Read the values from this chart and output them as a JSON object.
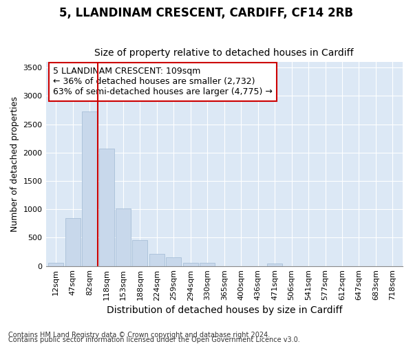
{
  "title": "5, LLANDINAM CRESCENT, CARDIFF, CF14 2RB",
  "subtitle": "Size of property relative to detached houses in Cardiff",
  "xlabel": "Distribution of detached houses by size in Cardiff",
  "ylabel": "Number of detached properties",
  "footnote1": "Contains HM Land Registry data © Crown copyright and database right 2024.",
  "footnote2": "Contains public sector information licensed under the Open Government Licence v3.0.",
  "annotation_line1": "5 LLANDINAM CRESCENT: 109sqm",
  "annotation_line2": "← 36% of detached houses are smaller (2,732)",
  "annotation_line3": "63% of semi-detached houses are larger (4,775) →",
  "bar_color": "#c8d8eb",
  "bar_edge_color": "#a8bfd8",
  "vline_color": "#cc0000",
  "categories": [
    "12sqm",
    "47sqm",
    "82sqm",
    "118sqm",
    "153sqm",
    "188sqm",
    "224sqm",
    "259sqm",
    "294sqm",
    "330sqm",
    "365sqm",
    "400sqm",
    "436sqm",
    "471sqm",
    "506sqm",
    "541sqm",
    "577sqm",
    "612sqm",
    "647sqm",
    "683sqm",
    "718sqm"
  ],
  "values": [
    60,
    850,
    2730,
    2075,
    1010,
    450,
    210,
    150,
    60,
    60,
    0,
    0,
    0,
    40,
    0,
    0,
    0,
    0,
    0,
    0,
    0
  ],
  "ylim": [
    0,
    3600
  ],
  "yticks": [
    0,
    500,
    1000,
    1500,
    2000,
    2500,
    3000,
    3500
  ],
  "plot_bg_color": "#dce8f5",
  "fig_bg_color": "#ffffff",
  "box_edge_color": "#cc0000",
  "title_fontsize": 12,
  "subtitle_fontsize": 10,
  "xlabel_fontsize": 10,
  "ylabel_fontsize": 9,
  "tick_fontsize": 8,
  "annotation_fontsize": 9,
  "footnote_fontsize": 7
}
